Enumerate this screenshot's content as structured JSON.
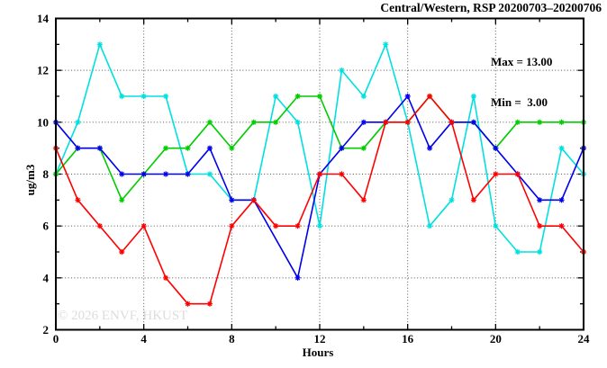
{
  "header": {
    "title": "Central/Western, RSP 20200703–20200706"
  },
  "legend": {
    "max_label": "Max = 13.00",
    "min_label": "Min =  3.00"
  },
  "watermark": "© 2026 ENVF, HKUST",
  "chart_data": {
    "type": "line",
    "title": "Central/Western, RSP 20200703–20200706",
    "xlabel": "Hours",
    "ylabel": "ug/m3",
    "xlim": [
      0,
      24
    ],
    "ylim": [
      2,
      14
    ],
    "x_ticks": [
      0,
      4,
      8,
      12,
      16,
      20,
      24
    ],
    "y_ticks": [
      2,
      4,
      6,
      8,
      10,
      12,
      14
    ],
    "x_minor_tick_step": 2,
    "y_minor_tick_step": 1,
    "grid": "dotted-at-major-ticks",
    "legend_position": "top-right-inside",
    "stat_max": 13.0,
    "stat_min": 3.0,
    "x": [
      0,
      1,
      2,
      3,
      4,
      5,
      6,
      7,
      8,
      9,
      10,
      11,
      12,
      13,
      14,
      15,
      16,
      17,
      18,
      19,
      20,
      21,
      22,
      23,
      24
    ],
    "series": [
      {
        "name": "cyan",
        "color": "#00e0e0",
        "values": [
          8,
          10,
          13,
          11,
          11,
          11,
          8,
          8,
          7,
          7,
          11,
          10,
          6,
          12,
          11,
          13,
          10,
          6,
          7,
          11,
          6,
          5,
          5,
          9,
          8
        ]
      },
      {
        "name": "green",
        "color": "#00cc00",
        "values": [
          8,
          9,
          9,
          7,
          8,
          9,
          9,
          10,
          9,
          10,
          10,
          11,
          11,
          9,
          9,
          10,
          10,
          11,
          10,
          10,
          9,
          10,
          10,
          10,
          10
        ]
      },
      {
        "name": "blue",
        "color": "#0000ee",
        "values": [
          10,
          9,
          9,
          8,
          8,
          8,
          8,
          9,
          7,
          7,
          null,
          4,
          8,
          9,
          10,
          10,
          11,
          9,
          10,
          10,
          9,
          8,
          7,
          7,
          9
        ]
      },
      {
        "name": "red",
        "color": "#ff0000",
        "values": [
          9,
          7,
          6,
          5,
          6,
          4,
          3,
          3,
          6,
          7,
          6,
          6,
          8,
          8,
          7,
          10,
          10,
          11,
          10,
          7,
          8,
          8,
          6,
          6,
          5
        ]
      }
    ]
  },
  "style": {
    "grid_color": "#555555",
    "axis_color": "#000000",
    "tick_label_x_right_edge": 54
  }
}
